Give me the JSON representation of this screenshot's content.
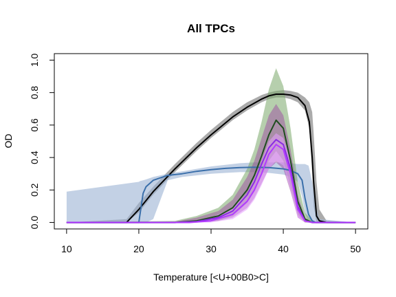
{
  "chart_data": {
    "type": "line",
    "title": "All TPCs",
    "xlabel": "Temperature [<U+00B0>C]",
    "ylabel": "OD",
    "xlim": [
      8.3,
      51.7
    ],
    "ylim": [
      -0.04,
      1.04
    ],
    "xticks": [
      10,
      20,
      30,
      40,
      50
    ],
    "yticks": [
      0.0,
      0.2,
      0.4,
      0.6,
      0.8,
      1.0
    ],
    "xtick_labels": [
      "10",
      "20",
      "30",
      "40",
      "50"
    ],
    "ytick_labels": [
      "0.0",
      "0.2",
      "0.4",
      "0.6",
      "0.8",
      "1.0"
    ],
    "legend": "none",
    "grid": false,
    "series": [
      {
        "line_color": "#000000",
        "band_color": "#000000",
        "band_opacity": 0.33,
        "x": [
          10,
          18.3,
          20,
          22,
          25,
          28,
          30,
          33,
          35,
          37,
          38,
          39,
          40,
          41,
          42,
          43,
          43.6,
          44,
          44.2,
          44.6,
          45,
          46,
          50
        ],
        "y": [
          0,
          0,
          0.08,
          0.19,
          0.33,
          0.46,
          0.54,
          0.65,
          0.71,
          0.76,
          0.78,
          0.79,
          0.79,
          0.785,
          0.77,
          0.72,
          0.62,
          0.4,
          0.25,
          0.04,
          0.01,
          0,
          0
        ],
        "lower": [
          0,
          0,
          0.06,
          0.17,
          0.31,
          0.44,
          0.52,
          0.63,
          0.69,
          0.74,
          0.76,
          0.77,
          0.77,
          0.76,
          0.74,
          0.69,
          0.58,
          0.3,
          0.1,
          0.0,
          0,
          0,
          0
        ],
        "upper": [
          0,
          0.02,
          0.12,
          0.22,
          0.36,
          0.49,
          0.57,
          0.68,
          0.74,
          0.785,
          0.8,
          0.81,
          0.815,
          0.81,
          0.8,
          0.77,
          0.74,
          0.68,
          0.55,
          0.25,
          0.08,
          0.01,
          0
        ]
      },
      {
        "line_color": "#3a6faa",
        "band_color": "#9bb3d4",
        "band_opacity": 0.6,
        "x": [
          10,
          20,
          20.2,
          20.6,
          21,
          22,
          24,
          26,
          28,
          30,
          32,
          34,
          36,
          38,
          40,
          41,
          42,
          42.6,
          43,
          43.5,
          44,
          44.5,
          45,
          50
        ],
        "y": [
          0,
          0,
          0.06,
          0.18,
          0.22,
          0.26,
          0.29,
          0.3,
          0.315,
          0.325,
          0.333,
          0.338,
          0.34,
          0.338,
          0.33,
          0.32,
          0.3,
          0.26,
          0.15,
          0.05,
          0.01,
          0,
          0,
          0
        ],
        "lower": [
          0,
          0,
          0,
          0,
          0,
          0.02,
          0.26,
          0.28,
          0.29,
          0.3,
          0.305,
          0.31,
          0.31,
          0.305,
          0.295,
          0.28,
          0.25,
          0.16,
          0.06,
          0.0,
          0,
          0,
          0,
          0
        ],
        "upper": [
          0.19,
          0.25,
          0.255,
          0.26,
          0.265,
          0.28,
          0.3,
          0.315,
          0.33,
          0.345,
          0.355,
          0.365,
          0.37,
          0.37,
          0.37,
          0.365,
          0.36,
          0.36,
          0.36,
          0.35,
          0.25,
          0.1,
          0.02,
          0
        ]
      },
      {
        "line_color": "#1e4d1e",
        "band_color": "#7aa86a",
        "band_opacity": 0.55,
        "x": [
          10,
          25,
          28,
          31,
          33,
          35,
          36,
          37,
          38,
          39,
          40,
          41,
          42,
          43,
          44,
          45,
          50
        ],
        "y": [
          0,
          0,
          0.01,
          0.04,
          0.09,
          0.2,
          0.29,
          0.41,
          0.54,
          0.63,
          0.58,
          0.38,
          0.13,
          0.02,
          0,
          0,
          0
        ],
        "lower": [
          0,
          0,
          0,
          0.01,
          0.04,
          0.12,
          0.19,
          0.29,
          0.38,
          0.44,
          0.38,
          0.22,
          0.05,
          0,
          0,
          0,
          0
        ],
        "upper": [
          0,
          0.01,
          0.04,
          0.09,
          0.17,
          0.33,
          0.45,
          0.62,
          0.82,
          0.95,
          0.84,
          0.58,
          0.25,
          0.06,
          0.01,
          0,
          0
        ]
      },
      {
        "line_color": "#8a2be2",
        "band_color": "#9a3ea0",
        "band_opacity": 0.45,
        "x": [
          10,
          25,
          28,
          31,
          33,
          35,
          36,
          37,
          38,
          39,
          40,
          41,
          42,
          43,
          44,
          50
        ],
        "y": [
          0,
          0,
          0.005,
          0.03,
          0.07,
          0.17,
          0.25,
          0.36,
          0.46,
          0.51,
          0.48,
          0.33,
          0.1,
          0.01,
          0,
          0
        ],
        "lower": [
          0,
          0,
          0,
          0.01,
          0.03,
          0.09,
          0.15,
          0.24,
          0.33,
          0.37,
          0.33,
          0.19,
          0.03,
          0,
          0,
          0
        ],
        "upper": [
          0,
          0.005,
          0.03,
          0.07,
          0.14,
          0.28,
          0.38,
          0.52,
          0.66,
          0.73,
          0.66,
          0.45,
          0.17,
          0.03,
          0,
          0
        ]
      },
      {
        "line_color": "#b13bff",
        "band_color": "#e6a0ff",
        "band_opacity": 0.55,
        "x": [
          10,
          27,
          30,
          33,
          35,
          36,
          37,
          38,
          39,
          40,
          41,
          42,
          43,
          44,
          50
        ],
        "y": [
          0,
          0,
          0.01,
          0.05,
          0.13,
          0.2,
          0.3,
          0.42,
          0.48,
          0.45,
          0.3,
          0.08,
          0.01,
          0,
          0
        ],
        "lower": [
          0,
          0,
          0,
          0.02,
          0.08,
          0.14,
          0.23,
          0.33,
          0.38,
          0.35,
          0.21,
          0.03,
          0,
          0,
          0
        ],
        "upper": [
          0,
          0.005,
          0.03,
          0.09,
          0.18,
          0.27,
          0.38,
          0.5,
          0.55,
          0.52,
          0.38,
          0.13,
          0.02,
          0,
          0
        ]
      }
    ]
  }
}
